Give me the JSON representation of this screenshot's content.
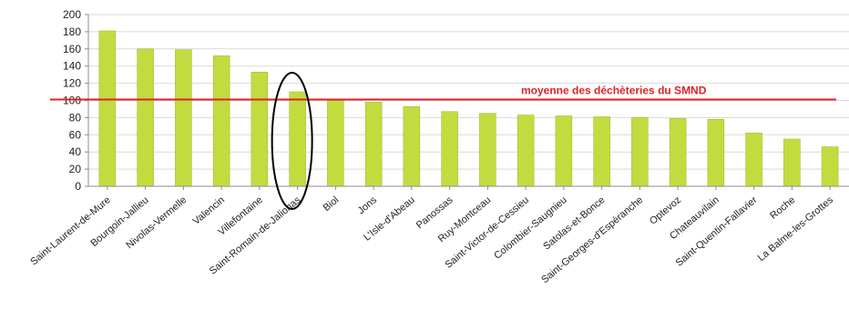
{
  "chart_data": {
    "type": "bar",
    "title": "",
    "xlabel": "",
    "ylabel": "",
    "ylim": [
      0,
      200
    ],
    "yticks": [
      0,
      20,
      40,
      60,
      80,
      100,
      120,
      140,
      160,
      180,
      200
    ],
    "grid": true,
    "categories": [
      "Saint-Laurent-de-Mure",
      "Bourgoin-Jallieu",
      "Nivolas-Vermelle",
      "Valencin",
      "Villefontaine",
      "Saint-Romain-de-Jalionas",
      "Biol",
      "Jons",
      "L'Isle-d'Abeau",
      "Panossas",
      "Ruy-Montceau",
      "Saint-Victor-de-Cessieu",
      "Colombier-Saugnieu",
      "Satolas-et-Bonce",
      "Saint-Georges-d'Espéranche",
      "Optevoz",
      "Chateauvilain",
      "Saint-Quentin-Fallavier",
      "Roche",
      "La Balme-les-Grottes"
    ],
    "values": [
      181,
      160,
      159,
      152,
      133,
      110,
      100,
      98,
      93,
      87,
      85,
      83,
      82,
      81,
      80,
      79,
      78,
      62,
      55,
      46
    ],
    "reference_line": {
      "value": 101,
      "label": "moyenne des déchèteries du SMND"
    },
    "highlight": {
      "category": "Saint-Romain-de-Jalionas",
      "shape": "ellipse"
    },
    "colors": {
      "bar": "#c2dc3f",
      "bar_edge": "#9ab52a",
      "reference_line": "#e0202a",
      "grid": "#d9d9d9",
      "axis": "#8c8c8c",
      "highlight": "#000000"
    }
  }
}
